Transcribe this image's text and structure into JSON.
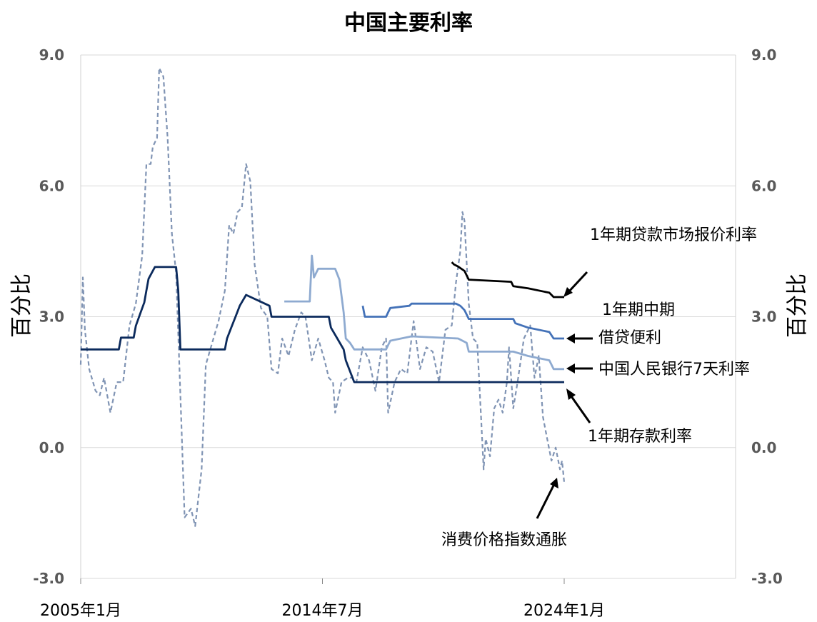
{
  "chart_data": {
    "type": "line",
    "title": "中国主要利率",
    "ylabel": "百分比",
    "ylabel_right": "百分比",
    "ylim": [
      -3.0,
      9.0
    ],
    "yticks": [
      "9.0",
      "6.0",
      "3.0",
      "0.0",
      "-3.0"
    ],
    "y2ticks": [
      "9.0",
      "6.0",
      "3.0",
      "0.0",
      "-3.0"
    ],
    "xlim": [
      "2005-01",
      "2029-01"
    ],
    "xticks": [
      {
        "label": "2005年1月",
        "x": "2005-01"
      },
      {
        "label": "2014年7月",
        "x": "2014-07"
      },
      {
        "label": "2024年1月",
        "x": "2024-01"
      }
    ],
    "grid": true,
    "series": [
      {
        "name": "1年期存款利率",
        "color": "#0b2a5c",
        "style": "solid",
        "points": [
          [
            "2005-01",
            2.25
          ],
          [
            "2006-07",
            2.25
          ],
          [
            "2006-08",
            2.52
          ],
          [
            "2007-02",
            2.52
          ],
          [
            "2007-03",
            2.79
          ],
          [
            "2007-05",
            3.06
          ],
          [
            "2007-07",
            3.33
          ],
          [
            "2007-08",
            3.6
          ],
          [
            "2007-09",
            3.87
          ],
          [
            "2007-12",
            4.14
          ],
          [
            "2008-10",
            4.14
          ],
          [
            "2008-11",
            3.6
          ],
          [
            "2008-12",
            2.25
          ],
          [
            "2010-09",
            2.25
          ],
          [
            "2010-10",
            2.5
          ],
          [
            "2010-12",
            2.75
          ],
          [
            "2011-02",
            3.0
          ],
          [
            "2011-04",
            3.25
          ],
          [
            "2011-07",
            3.5
          ],
          [
            "2012-06",
            3.25
          ],
          [
            "2012-07",
            3.0
          ],
          [
            "2014-10",
            3.0
          ],
          [
            "2014-11",
            2.75
          ],
          [
            "2015-02",
            2.5
          ],
          [
            "2015-05",
            2.25
          ],
          [
            "2015-06",
            2.0
          ],
          [
            "2015-08",
            1.75
          ],
          [
            "2015-10",
            1.5
          ],
          [
            "2024-01",
            1.5
          ]
        ]
      },
      {
        "name": "中国人民银行7天利率",
        "color": "#8eaad0",
        "style": "solid",
        "points": [
          [
            "2013-01",
            3.35
          ],
          [
            "2014-01",
            3.35
          ],
          [
            "2014-02",
            4.4
          ],
          [
            "2014-03",
            3.9
          ],
          [
            "2014-05",
            4.1
          ],
          [
            "2015-01",
            4.1
          ],
          [
            "2015-03",
            3.85
          ],
          [
            "2015-05",
            3.1
          ],
          [
            "2015-06",
            2.5
          ],
          [
            "2015-08",
            2.4
          ],
          [
            "2015-10",
            2.25
          ],
          [
            "2017-01",
            2.25
          ],
          [
            "2017-02",
            2.35
          ],
          [
            "2017-03",
            2.45
          ],
          [
            "2018-01",
            2.55
          ],
          [
            "2019-11",
            2.5
          ],
          [
            "2020-03",
            2.4
          ],
          [
            "2020-04",
            2.2
          ],
          [
            "2022-01",
            2.2
          ],
          [
            "2022-08",
            2.1
          ],
          [
            "2023-06",
            2.0
          ],
          [
            "2023-08",
            1.8
          ],
          [
            "2024-01",
            1.8
          ]
        ]
      },
      {
        "name": "借贷便利",
        "color": "#4472b8",
        "style": "solid",
        "points": [
          [
            "2016-02",
            3.25
          ],
          [
            "2016-03",
            3.0
          ],
          [
            "2017-01",
            3.0
          ],
          [
            "2017-02",
            3.1
          ],
          [
            "2017-03",
            3.2
          ],
          [
            "2017-12",
            3.25
          ],
          [
            "2018-01",
            3.3
          ],
          [
            "2019-10",
            3.3
          ],
          [
            "2019-12",
            3.25
          ],
          [
            "2020-02",
            3.15
          ],
          [
            "2020-04",
            2.95
          ],
          [
            "2022-01",
            2.95
          ],
          [
            "2022-02",
            2.85
          ],
          [
            "2022-08",
            2.75
          ],
          [
            "2023-06",
            2.65
          ],
          [
            "2023-08",
            2.5
          ],
          [
            "2024-01",
            2.5
          ]
        ]
      },
      {
        "name": "1年期贷款市场报价利率",
        "color": "#000000",
        "style": "solid",
        "points": [
          [
            "2019-08",
            4.25
          ],
          [
            "2019-09",
            4.2
          ],
          [
            "2019-11",
            4.15
          ],
          [
            "2020-02",
            4.05
          ],
          [
            "2020-04",
            3.85
          ],
          [
            "2021-12",
            3.8
          ],
          [
            "2022-01",
            3.7
          ],
          [
            "2022-08",
            3.65
          ],
          [
            "2023-06",
            3.55
          ],
          [
            "2023-08",
            3.45
          ],
          [
            "2024-01",
            3.45
          ]
        ]
      },
      {
        "name": "消费价格指数通胀",
        "color": "#8094b4",
        "style": "dashed",
        "points": [
          [
            "2005-01",
            1.9
          ],
          [
            "2005-02",
            3.9
          ],
          [
            "2005-03",
            2.7
          ],
          [
            "2005-05",
            1.8
          ],
          [
            "2005-08",
            1.3
          ],
          [
            "2005-10",
            1.2
          ],
          [
            "2005-12",
            1.6
          ],
          [
            "2006-03",
            0.8
          ],
          [
            "2006-06",
            1.5
          ],
          [
            "2006-09",
            1.5
          ],
          [
            "2006-12",
            2.8
          ],
          [
            "2007-03",
            3.3
          ],
          [
            "2007-06",
            4.4
          ],
          [
            "2007-08",
            6.5
          ],
          [
            "2007-10",
            6.5
          ],
          [
            "2007-11",
            6.9
          ],
          [
            "2008-01",
            7.1
          ],
          [
            "2008-02",
            8.7
          ],
          [
            "2008-04",
            8.5
          ],
          [
            "2008-06",
            7.1
          ],
          [
            "2008-08",
            4.9
          ],
          [
            "2008-10",
            4.0
          ],
          [
            "2008-12",
            1.2
          ],
          [
            "2009-02",
            -1.6
          ],
          [
            "2009-05",
            -1.4
          ],
          [
            "2009-07",
            -1.8
          ],
          [
            "2009-10",
            -0.5
          ],
          [
            "2009-12",
            1.9
          ],
          [
            "2010-03",
            2.4
          ],
          [
            "2010-06",
            2.9
          ],
          [
            "2010-09",
            3.6
          ],
          [
            "2010-11",
            5.1
          ],
          [
            "2011-01",
            4.9
          ],
          [
            "2011-03",
            5.4
          ],
          [
            "2011-05",
            5.5
          ],
          [
            "2011-07",
            6.5
          ],
          [
            "2011-09",
            6.1
          ],
          [
            "2011-11",
            4.2
          ],
          [
            "2012-02",
            3.2
          ],
          [
            "2012-05",
            3.0
          ],
          [
            "2012-07",
            1.8
          ],
          [
            "2012-10",
            1.7
          ],
          [
            "2012-12",
            2.5
          ],
          [
            "2013-03",
            2.1
          ],
          [
            "2013-06",
            2.7
          ],
          [
            "2013-09",
            3.1
          ],
          [
            "2013-11",
            3.0
          ],
          [
            "2014-02",
            2.0
          ],
          [
            "2014-05",
            2.5
          ],
          [
            "2014-08",
            2.0
          ],
          [
            "2014-10",
            1.6
          ],
          [
            "2014-12",
            1.5
          ],
          [
            "2015-01",
            0.8
          ],
          [
            "2015-04",
            1.5
          ],
          [
            "2015-07",
            1.6
          ],
          [
            "2015-09",
            1.6
          ],
          [
            "2015-11",
            1.5
          ],
          [
            "2016-02",
            2.3
          ],
          [
            "2016-05",
            2.0
          ],
          [
            "2016-08",
            1.3
          ],
          [
            "2016-11",
            2.3
          ],
          [
            "2017-01",
            2.5
          ],
          [
            "2017-02",
            0.8
          ],
          [
            "2017-05",
            1.5
          ],
          [
            "2017-08",
            1.8
          ],
          [
            "2017-11",
            1.7
          ],
          [
            "2018-02",
            2.9
          ],
          [
            "2018-05",
            1.8
          ],
          [
            "2018-08",
            2.3
          ],
          [
            "2018-11",
            2.2
          ],
          [
            "2019-02",
            1.5
          ],
          [
            "2019-05",
            2.7
          ],
          [
            "2019-08",
            2.8
          ],
          [
            "2019-10",
            3.8
          ],
          [
            "2019-12",
            4.5
          ],
          [
            "2020-01",
            5.4
          ],
          [
            "2020-02",
            5.2
          ],
          [
            "2020-04",
            3.3
          ],
          [
            "2020-06",
            2.5
          ],
          [
            "2020-08",
            2.4
          ],
          [
            "2020-10",
            0.5
          ],
          [
            "2020-11",
            -0.5
          ],
          [
            "2020-12",
            0.2
          ],
          [
            "2021-02",
            -0.2
          ],
          [
            "2021-04",
            0.9
          ],
          [
            "2021-06",
            1.1
          ],
          [
            "2021-08",
            0.8
          ],
          [
            "2021-10",
            1.5
          ],
          [
            "2021-11",
            2.3
          ],
          [
            "2022-01",
            0.9
          ],
          [
            "2022-03",
            1.5
          ],
          [
            "2022-06",
            2.5
          ],
          [
            "2022-09",
            2.8
          ],
          [
            "2022-11",
            1.6
          ],
          [
            "2023-01",
            2.1
          ],
          [
            "2023-03",
            0.7
          ],
          [
            "2023-05",
            0.2
          ],
          [
            "2023-07",
            -0.3
          ],
          [
            "2023-09",
            0.0
          ],
          [
            "2023-11",
            -0.5
          ],
          [
            "2023-12",
            -0.3
          ],
          [
            "2024-01",
            -0.8
          ]
        ]
      }
    ],
    "annotations": [
      {
        "text": "1年期贷款市场报价利率",
        "target": "1年期贷款市场报价利率"
      },
      {
        "text": "1年期中期",
        "target": "借贷便利"
      },
      {
        "text": "借贷便利",
        "target": "借贷便利"
      },
      {
        "text": "中国人民银行7天利率",
        "target": "中国人民银行7天利率"
      },
      {
        "text": "1年期存款利率",
        "target": "1年期存款利率"
      },
      {
        "text": "消费价格指数通胀",
        "target": "消费价格指数通胀"
      }
    ]
  }
}
